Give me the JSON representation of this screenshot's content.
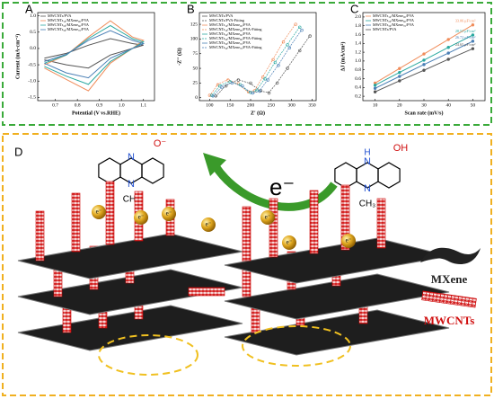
{
  "chart_data": [
    {
      "type": "line",
      "panel": "A",
      "x_label": "Potential (V vs.RHE)",
      "y_label": "Current (mA·cm⁻²)",
      "x": [
        0.65,
        0.75,
        0.85,
        0.95,
        1.05,
        1.1,
        1.05,
        0.95,
        0.85,
        0.75,
        0.65
      ],
      "xlim": [
        0.62,
        1.15
      ],
      "ylim": [
        -1.6,
        1.1
      ],
      "xticks": [
        0.7,
        0.8,
        0.9,
        {
          "value": 1,
          "label": "1.0"
        },
        1.1
      ],
      "yticks": [
        -1.5,
        {
          "value": -1,
          "label": "-1.0"
        },
        -0.5,
        {
          "value": 0,
          "label": "0.0"
        },
        0.5,
        {
          "value": 1,
          "label": "1.0"
        }
      ],
      "legend": "upper left",
      "series": [
        {
          "name": "MWCNTs/PVA",
          "color": "#555555",
          "values": [
            -0.3,
            -0.15,
            0.1,
            0.3,
            0.15,
            0.1,
            0.0,
            -0.2,
            -0.6,
            -0.5,
            -0.35
          ]
        },
        {
          "name": "MWCNTs₁₀/MXene₉₀/PVA",
          "color": "#f08c5a",
          "values": [
            -0.5,
            -0.2,
            0.35,
            0.85,
            0.35,
            0.25,
            0.0,
            -0.45,
            -1.3,
            -0.95,
            -0.6
          ]
        },
        {
          "name": "MWCNTs₂₀/MXene₈₀/PVA",
          "color": "#2aa8a0",
          "values": [
            -0.45,
            -0.2,
            0.3,
            0.7,
            0.3,
            0.2,
            0.0,
            -0.4,
            -1.1,
            -0.85,
            -0.55
          ]
        },
        {
          "name": "MWCNTs₃₀/MXene₇₀/PVA",
          "color": "#4a7fb5",
          "values": [
            -0.4,
            -0.18,
            0.25,
            0.55,
            0.25,
            0.15,
            0.0,
            -0.3,
            -0.9,
            -0.75,
            -0.45
          ]
        }
      ]
    },
    {
      "type": "scatter",
      "panel": "B",
      "x_label": "Z' (Ω)",
      "y_label": "-Z'' (Ω)",
      "xlim": [
        75,
        360
      ],
      "ylim": [
        -5,
        145
      ],
      "xticks": [
        100,
        150,
        200,
        250,
        300,
        350
      ],
      "yticks": [
        0,
        25,
        50,
        75,
        100,
        125
      ],
      "legend": "upper left",
      "series": [
        {
          "name": "MWCNTs/PVA",
          "color": "#555555",
          "x": [
            115,
            140,
            170,
            200,
            225,
            245,
            265,
            290,
            320,
            345
          ],
          "values": [
            3,
            20,
            30,
            25,
            12,
            8,
            25,
            50,
            80,
            105
          ]
        },
        {
          "name": "MWCNTs/PVA-Fitting",
          "color": "#555555",
          "line": true,
          "x": [
            115,
            140,
            170,
            200,
            225,
            245,
            265,
            290,
            320,
            345
          ],
          "values": [
            2,
            21,
            31,
            24,
            11,
            9,
            26,
            51,
            81,
            106
          ]
        },
        {
          "name": "MWCNTs₁₀/MXene₉₀/PVA",
          "color": "#f08c5a",
          "x": [
            100,
            120,
            145,
            170,
            195,
            210,
            230,
            255,
            280,
            310
          ],
          "values": [
            4,
            22,
            30,
            24,
            10,
            12,
            35,
            65,
            95,
            125
          ]
        },
        {
          "name": "MWCNTs₁₀/MXene₉₀/PVA-Fitting",
          "color": "#f08c5a",
          "line": true,
          "x": [
            100,
            120,
            145,
            170,
            195,
            210,
            230,
            255,
            280,
            310
          ],
          "values": [
            3,
            23,
            31,
            23,
            9,
            13,
            36,
            66,
            96,
            126
          ]
        },
        {
          "name": "MWCNTs₂₀/MXene₈₀/PVA",
          "color": "#2aa8a0",
          "x": [
            105,
            125,
            150,
            175,
            200,
            215,
            235,
            260,
            290,
            320
          ],
          "values": [
            4,
            20,
            27,
            22,
            9,
            12,
            32,
            60,
            90,
            120
          ]
        },
        {
          "name": "MWCNTs₂₀/MXene₈₀/PVA-Fitting",
          "color": "#2aa8a0",
          "line": true,
          "x": [
            105,
            125,
            150,
            175,
            200,
            215,
            235,
            260,
            290,
            320
          ],
          "values": [
            3,
            21,
            28,
            21,
            8,
            13,
            33,
            61,
            91,
            121
          ]
        },
        {
          "name": "MWCNTs₃₀/MXene₇₀/PVA",
          "color": "#4a7fb5",
          "x": [
            108,
            130,
            155,
            180,
            205,
            222,
            242,
            268,
            295,
            325
          ],
          "values": [
            3,
            18,
            25,
            20,
            8,
            11,
            30,
            55,
            85,
            115
          ]
        },
        {
          "name": "MWCNTs₃₀/MXene₇₀/PVA-Fitting",
          "color": "#4a7fb5",
          "line": true,
          "x": [
            108,
            130,
            155,
            180,
            205,
            222,
            242,
            268,
            295,
            325
          ],
          "values": [
            2,
            19,
            26,
            19,
            7,
            12,
            31,
            56,
            86,
            116
          ]
        }
      ]
    },
    {
      "type": "line",
      "panel": "C",
      "x_label": "Scan rate (mV/s)",
      "y_label": "ΔJ (mA/cm²)",
      "x": [
        10,
        20,
        30,
        40,
        50
      ],
      "xlim": [
        5,
        55
      ],
      "ylim": [
        0.1,
        2.1
      ],
      "xticks": [
        10,
        20,
        30,
        40,
        50
      ],
      "yticks": [
        0.2,
        0.4,
        0.6,
        0.8,
        {
          "value": 1,
          "label": "1.0"
        },
        1.2,
        1.4,
        1.6,
        1.8,
        {
          "value": 2,
          "label": "2.0"
        }
      ],
      "markers": true,
      "legend": "upper left",
      "series": [
        {
          "name": "MWCNTs₁₀/MXene₉₀/PVA",
          "color": "#f08c5a",
          "annotation": "33.06 μF/cm²",
          "values": [
            0.5,
            0.83,
            1.16,
            1.49,
            1.82
          ]
        },
        {
          "name": "MWCNTs₂₀/MXene₈₀/PVA",
          "color": "#2aa8a0",
          "annotation": "28.51 μF/cm²",
          "values": [
            0.45,
            0.74,
            1.02,
            1.31,
            1.59
          ]
        },
        {
          "name": "MWCNTs₃₀/MXene₇₀/PVA",
          "color": "#4a7fb5",
          "annotation": "26.72 μF/cm²",
          "values": [
            0.38,
            0.65,
            0.92,
            1.18,
            1.45
          ]
        },
        {
          "name": "MWCNTs/PVA",
          "color": "#555555",
          "annotation": "24.65 μF/cm²",
          "values": [
            0.3,
            0.55,
            0.79,
            1.04,
            1.28
          ]
        }
      ]
    }
  ],
  "diagram": {
    "panel": "D",
    "electron": "e⁻",
    "electron_labels": [
      "e⁻",
      "e⁻",
      "e⁻",
      "e⁻",
      "e⁻",
      "e⁻",
      "e⁻"
    ],
    "left_molecule": {
      "atoms": [
        "N",
        "N",
        "O⁻",
        "CH₃"
      ]
    },
    "right_molecule": {
      "atoms": [
        "H",
        "N",
        "N",
        "OH",
        "CH₃"
      ]
    },
    "legend": [
      "MXene",
      "MWCNTs"
    ]
  }
}
